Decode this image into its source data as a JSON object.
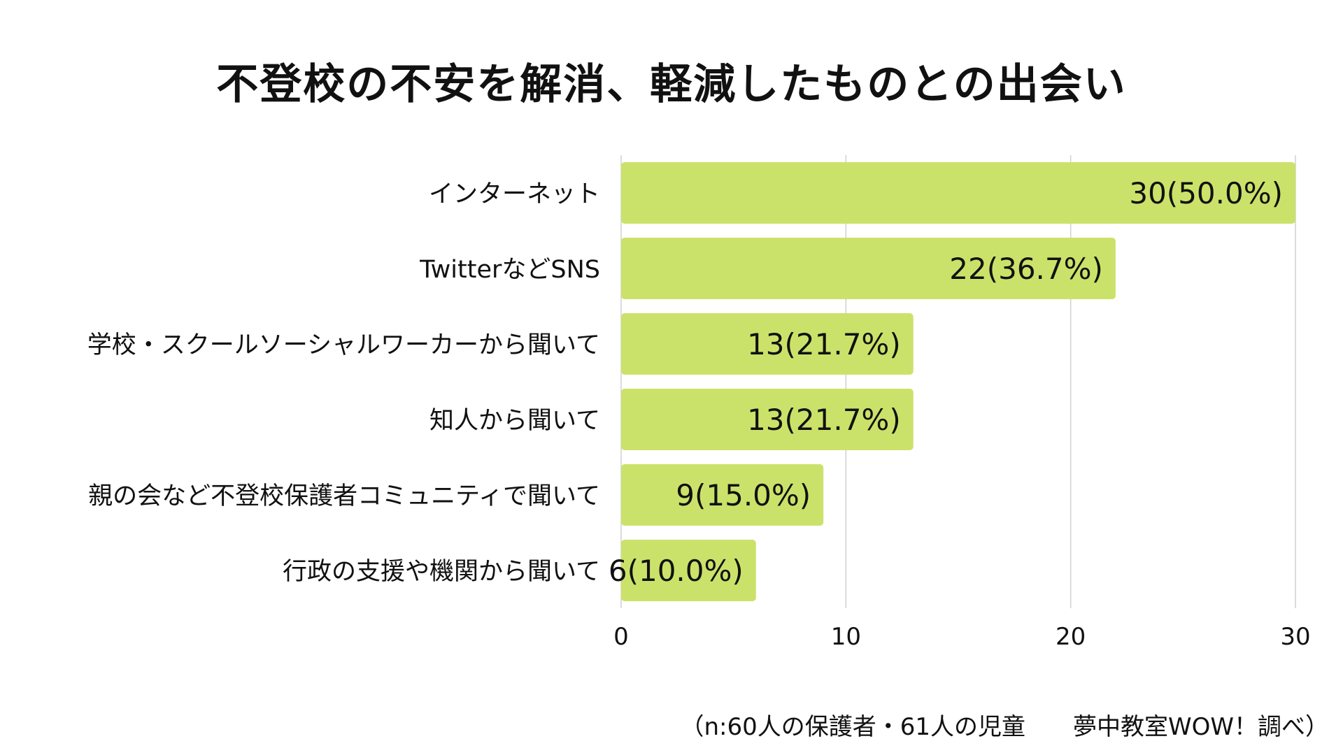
{
  "chart_data": {
    "type": "bar",
    "orientation": "horizontal",
    "title": "不登校の不安を解消、軽減したものとの出会い",
    "categories": [
      "インターネット",
      "TwitterなどSNS",
      "学校・スクールソーシャルワーカーから聞いて",
      "知人から聞いて",
      "親の会など不登校保護者コミュニティで聞いて",
      "行政の支援や機関から聞いて"
    ],
    "values": [
      30,
      22,
      13,
      13,
      9,
      6
    ],
    "data_labels": [
      "30(50.0%)",
      "22(36.7%)",
      "13(21.7%)",
      "13(21.7%)",
      "9(15.0%)",
      "6(10.0%)"
    ],
    "xlim": [
      0,
      30
    ],
    "xticks": [
      "0",
      "10",
      "20",
      "30"
    ],
    "grid": true,
    "bar_color": "#cbe26a",
    "grid_color": "#d0d0d0"
  },
  "footer": {
    "note": "（n:60人の保護者・61人の児童　　夢中教室WOW！調べ）"
  }
}
